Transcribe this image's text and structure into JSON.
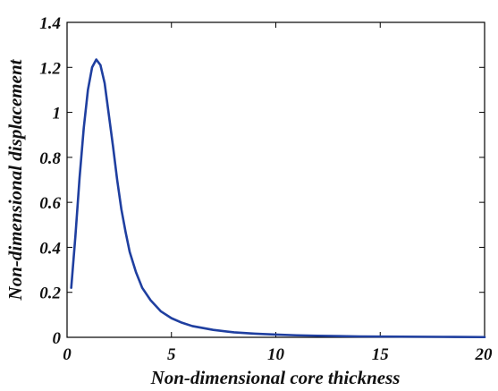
{
  "chart_data": {
    "type": "line",
    "title": "",
    "xlabel": "Non-dimensional core thickness",
    "ylabel": "Non-dimensional displacement",
    "xlim": [
      0,
      20
    ],
    "ylim": [
      0,
      1.4
    ],
    "grid": false,
    "legend": "none",
    "x_ticks": [
      "0",
      "5",
      "10",
      "15",
      "20"
    ],
    "y_ticks": [
      "0",
      "0.2",
      "0.4",
      "0.6",
      "0.8",
      "1",
      "1.2",
      "1.4"
    ],
    "line_color": "#1f3fa0",
    "series": [
      {
        "x": [
          0.2,
          0.4,
          0.6,
          0.8,
          1.0,
          1.2,
          1.4,
          1.6,
          1.8,
          2.0,
          2.2,
          2.4,
          2.6,
          2.8,
          3.0,
          3.3,
          3.6,
          4.0,
          4.5,
          5.0,
          5.5,
          6.0,
          7.0,
          8.0,
          9.0,
          10.0,
          11.0,
          12.0,
          14.0,
          16.0,
          18.0,
          20.0
        ],
        "y": [
          0.22,
          0.45,
          0.71,
          0.93,
          1.1,
          1.2,
          1.235,
          1.21,
          1.13,
          0.99,
          0.85,
          0.7,
          0.57,
          0.47,
          0.38,
          0.29,
          0.22,
          0.165,
          0.115,
          0.085,
          0.065,
          0.05,
          0.033,
          0.022,
          0.016,
          0.012,
          0.009,
          0.007,
          0.004,
          0.003,
          0.002,
          0.001
        ]
      }
    ]
  }
}
